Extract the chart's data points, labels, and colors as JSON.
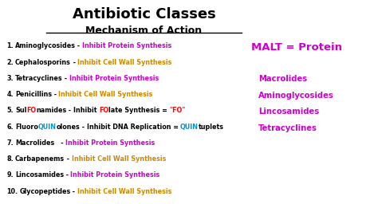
{
  "title": "Antibiotic Classes",
  "subtitle": "Mechanism of Action",
  "bg_color": "#ffffff",
  "title_color": "#000000",
  "subtitle_color": "#000000",
  "list_items": [
    {
      "num": "1.",
      "drug": "Aminoglycosides",
      "dash": " - ",
      "mechanism": "Inhibit Protein Synthesis",
      "mech_color": "#cc00cc",
      "drug_color": "#000000",
      "special": null
    },
    {
      "num": "2.",
      "drug": "Cephalosporins",
      "dash": " - ",
      "mechanism": "Inhibit Cell Wall Synthesis",
      "mech_color": "#cc8800",
      "drug_color": "#000000",
      "special": null
    },
    {
      "num": "3.",
      "drug": "Tetracyclines",
      "dash": " - ",
      "mechanism": "Inhibit Protein Synthesis",
      "mech_color": "#cc00cc",
      "drug_color": "#000000",
      "special": null
    },
    {
      "num": "4.",
      "drug": "Penicillins",
      "dash": " - ",
      "mechanism": "Inhibit Cell Wall Synthesis",
      "mech_color": "#cc8800",
      "drug_color": "#000000",
      "special": null
    },
    {
      "num": "5.",
      "drug_parts": [
        {
          "text": "Sul",
          "color": "#000000"
        },
        {
          "text": "FO",
          "color": "#ff0000"
        },
        {
          "text": "namides",
          "color": "#000000"
        }
      ],
      "dash": " - ",
      "mech_parts": [
        {
          "text": "Inhibit ",
          "color": "#000000"
        },
        {
          "text": "FO",
          "color": "#ff0000"
        },
        {
          "text": "late Synthesis = ",
          "color": "#000000"
        },
        {
          "text": "\"FO\"",
          "color": "#ff0000"
        }
      ],
      "special": "sulfonamides"
    },
    {
      "num": "6.",
      "drug_parts": [
        {
          "text": "Fluoro",
          "color": "#000000"
        },
        {
          "text": "QUIN",
          "color": "#0099cc"
        },
        {
          "text": "olones",
          "color": "#000000"
        }
      ],
      "dash": " - ",
      "mech_parts": [
        {
          "text": "Inhibit DNA Replication = ",
          "color": "#000000"
        },
        {
          "text": "QUIN",
          "color": "#0099cc"
        },
        {
          "text": "tuplets",
          "color": "#000000"
        }
      ],
      "special": "fluoroquinolones"
    },
    {
      "num": "7.",
      "drug": "Macrolides",
      "dash": "   - ",
      "mechanism": "Inhibit Protein Synthesis",
      "mech_color": "#cc00cc",
      "drug_color": "#000000",
      "special": null
    },
    {
      "num": "8.",
      "drug": "Carbapenems",
      "dash": " - ",
      "mechanism": "Inhibit Cell Wall Synthesis",
      "mech_color": "#cc8800",
      "drug_color": "#000000",
      "special": null
    },
    {
      "num": "9.",
      "drug": "Lincosamides",
      "dash": " - ",
      "mechanism": "Inhibit Protein Synthesis",
      "mech_color": "#cc00cc",
      "drug_color": "#000000",
      "special": null
    },
    {
      "num": "10.",
      "drug": "Glycopeptides",
      "dash": " - ",
      "mechanism": "Inhibit Cell Wall Synthesis",
      "mech_color": "#cc8800",
      "drug_color": "#000000",
      "special": null
    }
  ],
  "malt_title": "MALT = Protein",
  "malt_color": "#cc00cc",
  "malt_items": [
    "Macrolides",
    "Aminoglycosides",
    "Lincosamides",
    "Tetracyclines"
  ],
  "malt_item_color": "#cc00cc"
}
